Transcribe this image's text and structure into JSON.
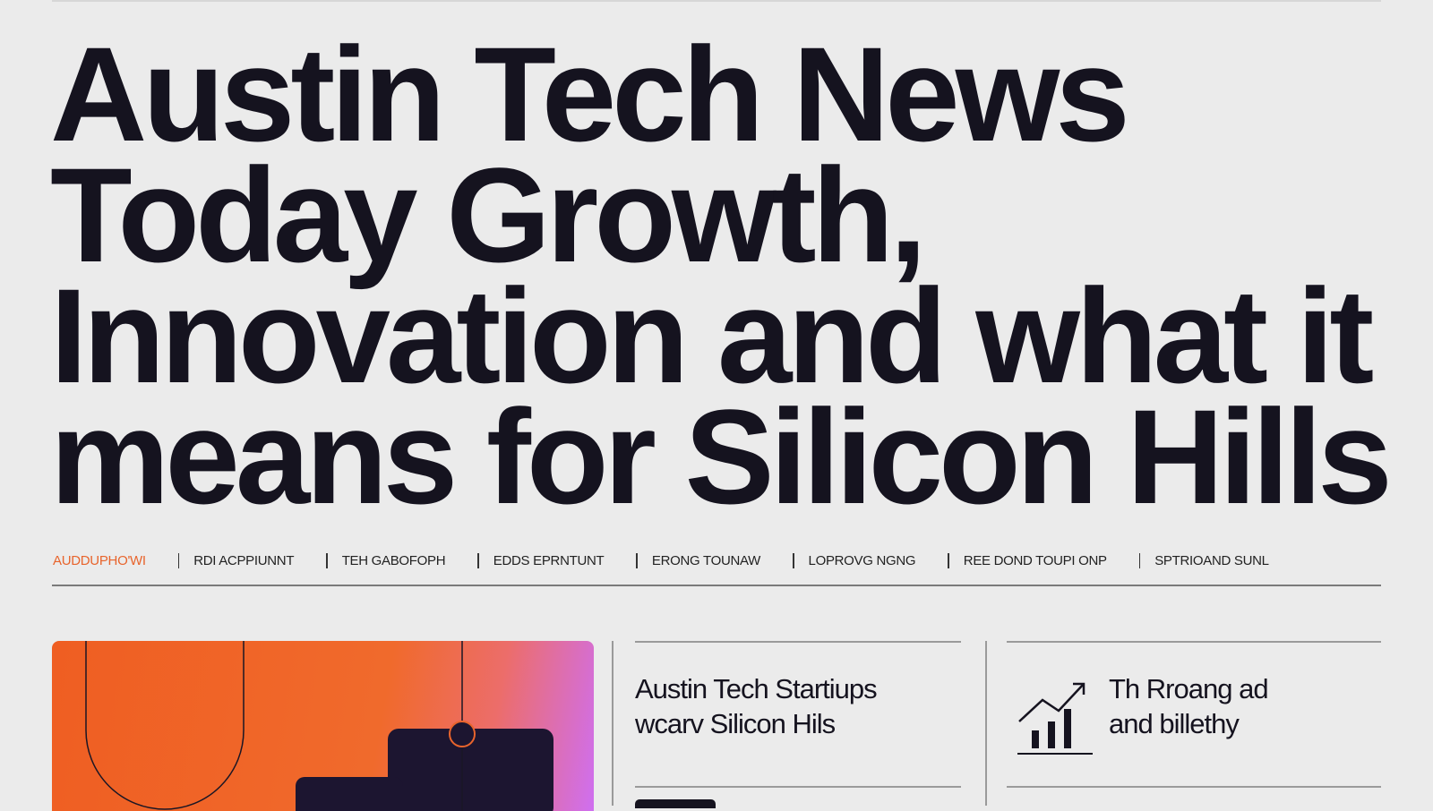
{
  "headline": {
    "lines": [
      "Austin Tech News",
      "Today Growth,",
      "Innovation and what it",
      "means for Silicon Hills"
    ]
  },
  "nav": {
    "items": [
      "AUDDUPHO'WI",
      "RDI ACPPIUNNT",
      "TEH GABOFOPH",
      "EDDS EPRNTUNT",
      "ERONG TOUNAW",
      "LOPROVG NGNG",
      "REE DOND TOUPI ONP",
      "SPTRIOAND SUNL"
    ]
  },
  "cards": [
    {
      "lines": [
        "Austin Tech Startiups",
        "wcarv Silicon Hils"
      ]
    },
    {
      "lines": [
        "Th Rroang ad",
        "and billethy"
      ]
    }
  ]
}
